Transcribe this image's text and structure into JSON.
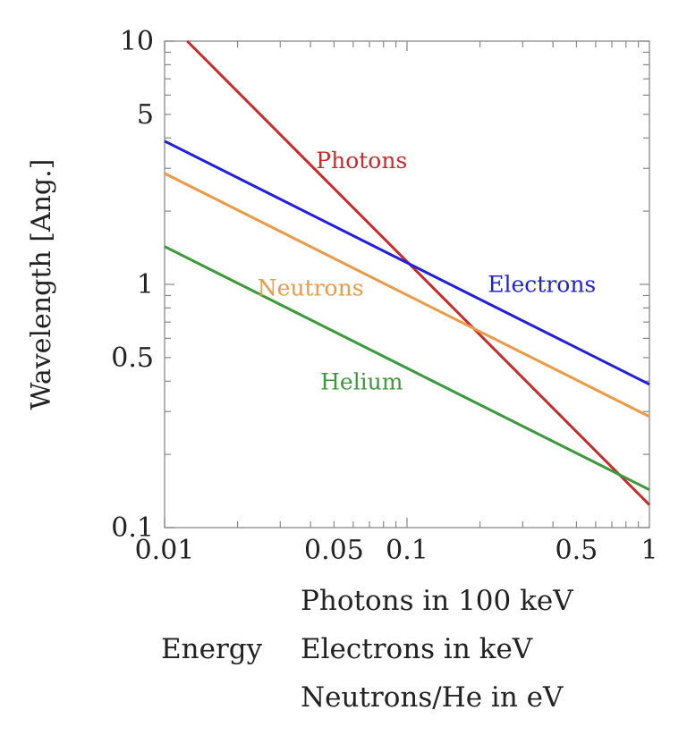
{
  "chart_data": {
    "type": "line",
    "x_scale": "log",
    "y_scale": "log",
    "xlim": [
      0.01,
      1
    ],
    "ylim": [
      0.1,
      10
    ],
    "ylabel": "Wavelength [Ang.]",
    "x_tick_labels": [
      {
        "value": 0.01,
        "label": "0.01"
      },
      {
        "value": 0.05,
        "label": "0.05"
      },
      {
        "value": 0.1,
        "label": "0.1"
      },
      {
        "value": 0.5,
        "label": "0.5"
      },
      {
        "value": 1,
        "label": "1"
      }
    ],
    "y_tick_labels": [
      {
        "value": 0.1,
        "label": "0.1"
      },
      {
        "value": 0.5,
        "label": "0.5"
      },
      {
        "value": 1,
        "label": "1"
      },
      {
        "value": 5,
        "label": "5"
      },
      {
        "value": 10,
        "label": "10"
      }
    ],
    "grid": false,
    "series": [
      {
        "name": "Photons",
        "color": "#cc2a2a",
        "x": [
          0.0124,
          1
        ],
        "y": [
          10,
          0.124
        ]
      },
      {
        "name": "Electrons",
        "color": "#1f1fe0",
        "x": [
          0.01,
          1
        ],
        "y": [
          3.88,
          0.388
        ]
      },
      {
        "name": "Neutrons",
        "color": "#ee9944",
        "x": [
          0.01,
          1
        ],
        "y": [
          2.86,
          0.286
        ]
      },
      {
        "name": "Helium",
        "color": "#3a9a3a",
        "x": [
          0.01,
          1
        ],
        "y": [
          1.43,
          0.143
        ]
      }
    ],
    "series_labels": [
      {
        "text": "Photons",
        "x": 0.065,
        "y": 3.0,
        "color": "#cc2a2a"
      },
      {
        "text": "Electrons",
        "x": 0.36,
        "y": 0.93,
        "color": "#1f1fe0"
      },
      {
        "text": "Neutrons",
        "x": 0.04,
        "y": 0.9,
        "color": "#ee9944"
      },
      {
        "text": "Helium",
        "x": 0.065,
        "y": 0.37,
        "color": "#3a9a3a"
      }
    ],
    "axis_notes": {
      "energy": "Energy",
      "lines": [
        "Photons in 100 keV",
        "Electrons in keV",
        "Neutrons/He in eV"
      ]
    }
  }
}
